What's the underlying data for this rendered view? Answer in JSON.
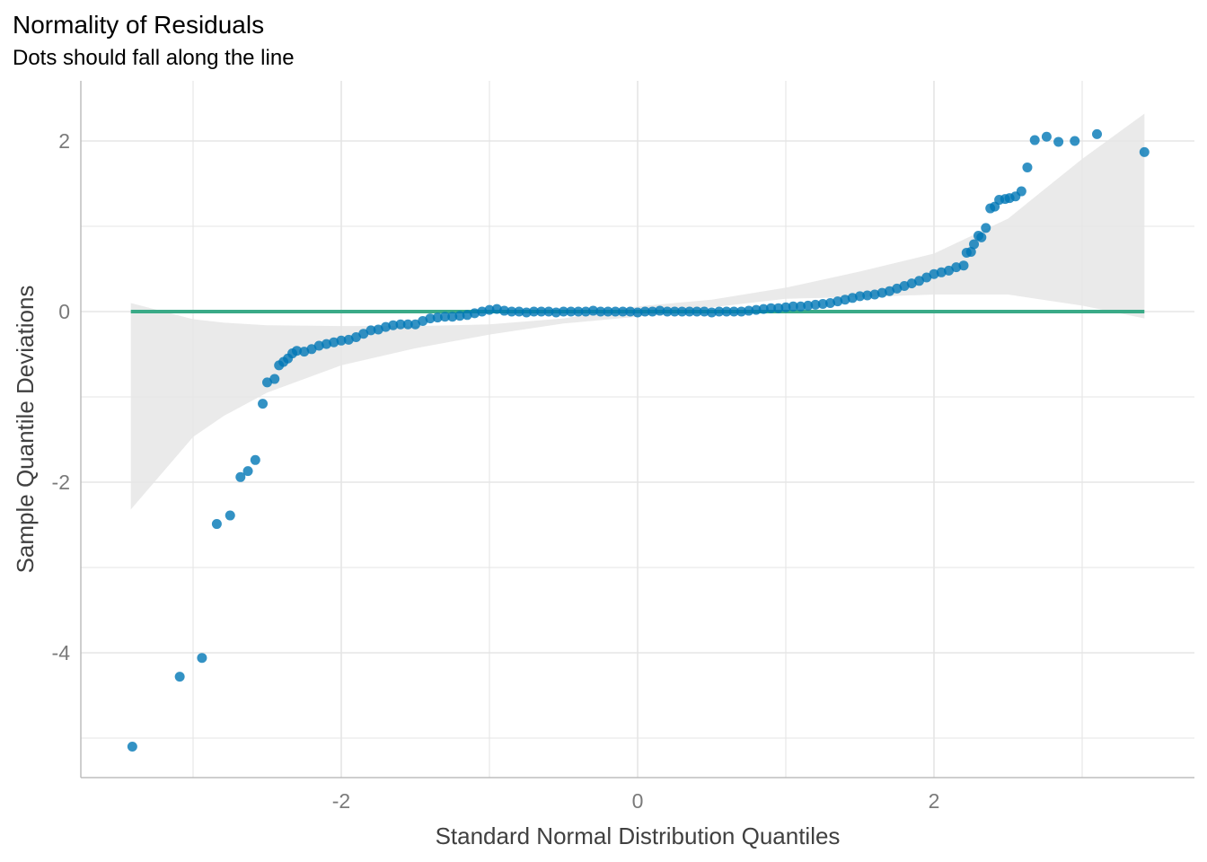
{
  "chart_data": {
    "type": "scatter",
    "title": "Normality of Residuals",
    "subtitle": "Dots should fall along the line",
    "xlabel": "Standard Normal Distribution Quantiles",
    "ylabel": "Sample Quantile Deviations",
    "xlim": [
      -3.75,
      3.75
    ],
    "ylim": [
      -5.45,
      2.7
    ],
    "x_ticks": [
      -2,
      0,
      2
    ],
    "x_tick_labels": [
      "-2",
      "0",
      "2"
    ],
    "y_ticks": [
      -4,
      -2,
      0,
      2
    ],
    "y_tick_labels": [
      "-4",
      "-2",
      "0",
      "2"
    ],
    "grid": true,
    "colors": {
      "points": "#0077b5",
      "reference_line": "#3aaa87",
      "band": "#e6e6e6",
      "grid": "#e5e5e5"
    },
    "reference_line": {
      "x": [
        -3.42,
        3.42
      ],
      "y": [
        0,
        0
      ]
    },
    "confidence_band": {
      "x": [
        -3.42,
        -3.0,
        -2.79,
        -2.5,
        -2.0,
        -1.5,
        -1.0,
        -0.5,
        0.0,
        0.5,
        1.0,
        1.5,
        2.0,
        2.5,
        3.0,
        3.42
      ],
      "upper": [
        0.1,
        -0.09,
        -0.13,
        -0.16,
        -0.17,
        -0.17,
        -0.15,
        -0.08,
        0.06,
        0.14,
        0.28,
        0.47,
        0.68,
        1.09,
        1.79,
        2.32
      ],
      "lower": [
        -2.32,
        -1.47,
        -1.22,
        -0.95,
        -0.63,
        -0.43,
        -0.27,
        -0.14,
        -0.06,
        0.05,
        0.15,
        0.17,
        0.2,
        0.2,
        0.07,
        -0.08
      ]
    },
    "points": [
      [
        -3.41,
        -5.1
      ],
      [
        -3.09,
        -4.28
      ],
      [
        -2.94,
        -4.06
      ],
      [
        -2.84,
        -2.49
      ],
      [
        -2.75,
        -2.39
      ],
      [
        -2.68,
        -1.94
      ],
      [
        -2.63,
        -1.87
      ],
      [
        -2.58,
        -1.74
      ],
      [
        -2.53,
        -1.08
      ],
      [
        -2.5,
        -0.83
      ],
      [
        -2.45,
        -0.79
      ],
      [
        -2.42,
        -0.63
      ],
      [
        -2.39,
        -0.59
      ],
      [
        -2.36,
        -0.55
      ],
      [
        -2.33,
        -0.49
      ],
      [
        -2.3,
        -0.46
      ],
      [
        -2.25,
        -0.47
      ],
      [
        -2.2,
        -0.44
      ],
      [
        -2.15,
        -0.4
      ],
      [
        -2.1,
        -0.38
      ],
      [
        -2.05,
        -0.36
      ],
      [
        -2.0,
        -0.34
      ],
      [
        -1.95,
        -0.33
      ],
      [
        -1.9,
        -0.3
      ],
      [
        -1.85,
        -0.26
      ],
      [
        -1.8,
        -0.22
      ],
      [
        -1.75,
        -0.21
      ],
      [
        -1.7,
        -0.18
      ],
      [
        -1.65,
        -0.16
      ],
      [
        -1.6,
        -0.15
      ],
      [
        -1.55,
        -0.15
      ],
      [
        -1.5,
        -0.15
      ],
      [
        -1.45,
        -0.11
      ],
      [
        -1.4,
        -0.08
      ],
      [
        -1.35,
        -0.07
      ],
      [
        -1.3,
        -0.06
      ],
      [
        -1.25,
        -0.06
      ],
      [
        -1.2,
        -0.05
      ],
      [
        -1.15,
        -0.04
      ],
      [
        -1.1,
        -0.02
      ],
      [
        -1.05,
        0.0
      ],
      [
        -1.0,
        0.02
      ],
      [
        -0.95,
        0.03
      ],
      [
        -0.9,
        0.01
      ],
      [
        -0.85,
        0.0
      ],
      [
        -0.8,
        0.0
      ],
      [
        -0.75,
        -0.01
      ],
      [
        -0.7,
        0.0
      ],
      [
        -0.65,
        0.0
      ],
      [
        -0.6,
        0.0
      ],
      [
        -0.55,
        -0.01
      ],
      [
        -0.5,
        0.0
      ],
      [
        -0.45,
        0.0
      ],
      [
        -0.4,
        0.0
      ],
      [
        -0.35,
        0.0
      ],
      [
        -0.3,
        0.01
      ],
      [
        -0.25,
        0.0
      ],
      [
        -0.2,
        0.0
      ],
      [
        -0.15,
        0.0
      ],
      [
        -0.1,
        0.0
      ],
      [
        -0.05,
        0.0
      ],
      [
        0.0,
        -0.01
      ],
      [
        0.05,
        0.0
      ],
      [
        0.1,
        0.0
      ],
      [
        0.15,
        0.01
      ],
      [
        0.2,
        0.0
      ],
      [
        0.25,
        0.0
      ],
      [
        0.3,
        0.0
      ],
      [
        0.35,
        0.0
      ],
      [
        0.4,
        0.0
      ],
      [
        0.45,
        0.0
      ],
      [
        0.5,
        -0.01
      ],
      [
        0.55,
        0.0
      ],
      [
        0.6,
        0.0
      ],
      [
        0.65,
        0.0
      ],
      [
        0.7,
        0.0
      ],
      [
        0.75,
        0.01
      ],
      [
        0.8,
        0.02
      ],
      [
        0.85,
        0.03
      ],
      [
        0.9,
        0.04
      ],
      [
        0.95,
        0.04
      ],
      [
        1.0,
        0.05
      ],
      [
        1.05,
        0.06
      ],
      [
        1.1,
        0.06
      ],
      [
        1.15,
        0.07
      ],
      [
        1.2,
        0.08
      ],
      [
        1.25,
        0.09
      ],
      [
        1.3,
        0.1
      ],
      [
        1.35,
        0.12
      ],
      [
        1.4,
        0.14
      ],
      [
        1.45,
        0.16
      ],
      [
        1.5,
        0.18
      ],
      [
        1.55,
        0.19
      ],
      [
        1.6,
        0.2
      ],
      [
        1.65,
        0.22
      ],
      [
        1.7,
        0.24
      ],
      [
        1.75,
        0.27
      ],
      [
        1.8,
        0.3
      ],
      [
        1.85,
        0.33
      ],
      [
        1.9,
        0.36
      ],
      [
        1.95,
        0.4
      ],
      [
        2.0,
        0.44
      ],
      [
        2.05,
        0.46
      ],
      [
        2.1,
        0.48
      ],
      [
        2.15,
        0.52
      ],
      [
        2.2,
        0.54
      ],
      [
        2.22,
        0.69
      ],
      [
        2.25,
        0.7
      ],
      [
        2.27,
        0.79
      ],
      [
        2.3,
        0.89
      ],
      [
        2.32,
        0.87
      ],
      [
        2.35,
        0.98
      ],
      [
        2.38,
        1.21
      ],
      [
        2.41,
        1.23
      ],
      [
        2.44,
        1.31
      ],
      [
        2.48,
        1.32
      ],
      [
        2.51,
        1.33
      ],
      [
        2.55,
        1.35
      ],
      [
        2.59,
        1.41
      ],
      [
        2.63,
        1.69
      ],
      [
        2.68,
        2.01
      ],
      [
        2.76,
        2.05
      ],
      [
        2.84,
        1.99
      ],
      [
        2.95,
        2.0
      ],
      [
        3.1,
        2.08
      ],
      [
        3.42,
        1.87
      ]
    ]
  }
}
